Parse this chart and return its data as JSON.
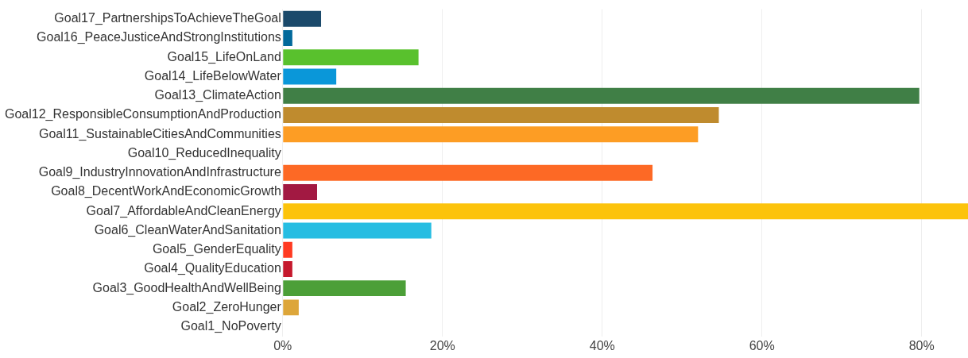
{
  "chart_data": {
    "type": "bar",
    "orientation": "horizontal",
    "categories": [
      "Goal17_PartnershipsToAchieveTheGoal",
      "Goal16_PeaceJusticeAndStrongInstitutions",
      "Goal15_LifeOnLand",
      "Goal14_LifeBelowWater",
      "Goal13_ClimateAction",
      "Goal12_ResponsibleConsumptionAndProduction",
      "Goal11_SustainableCitiesAndCommunities",
      "Goal10_ReducedInequality",
      "Goal9_IndustryInnovationAndInfrastructure",
      "Goal8_DecentWorkAndEconomicGrowth",
      "Goal7_AffordableAndCleanEnergy",
      "Goal6_CleanWaterAndSanitation",
      "Goal5_GenderEquality",
      "Goal4_QualityEducation",
      "Goal3_GoodHealthAndWellBeing",
      "Goal2_ZeroHunger",
      "Goal1_NoPoverty"
    ],
    "values": [
      4.8,
      1.2,
      17.0,
      6.7,
      79.7,
      54.6,
      52.0,
      0,
      46.3,
      4.3,
      85.8,
      18.6,
      1.2,
      1.2,
      15.4,
      2.0,
      0
    ],
    "colors": [
      "#1b4a6b",
      "#02699b",
      "#59c12d",
      "#0a97d9",
      "#407f46",
      "#bf8b2e",
      "#fd9d24",
      "#dd1367",
      "#fd6925",
      "#a21942",
      "#fcc30b",
      "#26bde2",
      "#ff3a21",
      "#c5192d",
      "#4c9f38",
      "#dda63a",
      "#e5243b"
    ],
    "xlim": [
      0,
      85.8
    ],
    "xticks": [
      {
        "value": 0,
        "label": "0%"
      },
      {
        "value": 20,
        "label": "20%"
      },
      {
        "value": 40,
        "label": "40%"
      },
      {
        "value": 60,
        "label": "60%"
      },
      {
        "value": 80,
        "label": "80%"
      }
    ],
    "grid": "x",
    "legend": false
  }
}
